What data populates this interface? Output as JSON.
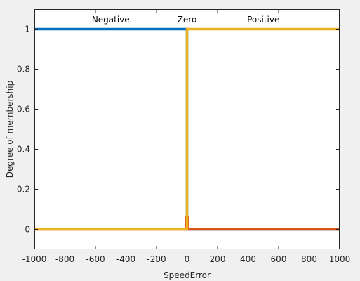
{
  "chart_data": {
    "type": "line",
    "title": "",
    "xlabel": "SpeedError",
    "ylabel": "Degree of membership",
    "xlim": [
      -1000,
      1000
    ],
    "ylim": [
      -0.1,
      1.1
    ],
    "xticks": [
      -1000,
      -800,
      -600,
      -400,
      -200,
      0,
      200,
      400,
      600,
      800,
      1000
    ],
    "yticks": [
      0,
      0.2,
      0.4,
      0.6,
      0.8,
      1
    ],
    "ytick_labels": [
      "0",
      "0.2",
      "0.4",
      "0.6",
      "0.8",
      "1"
    ],
    "grid": false,
    "series": [
      {
        "name": "Negative",
        "color": "#0072bd",
        "x": [
          -1000,
          0,
          0,
          1000
        ],
        "y": [
          1,
          1,
          0,
          0
        ]
      },
      {
        "name": "Zero",
        "color": "#d95319",
        "x": [
          -1000,
          -4,
          -4,
          4,
          4,
          1000
        ],
        "y": [
          0,
          0,
          0.06,
          0.06,
          0,
          0
        ]
      },
      {
        "name": "Positive",
        "color": "#edb120",
        "x": [
          -1000,
          0,
          0,
          1000
        ],
        "y": [
          0,
          0,
          1,
          1
        ]
      }
    ],
    "label_positions": [
      {
        "name": "Negative",
        "x": -500
      },
      {
        "name": "Zero",
        "x": 0
      },
      {
        "name": "Positive",
        "x": 500
      }
    ]
  }
}
